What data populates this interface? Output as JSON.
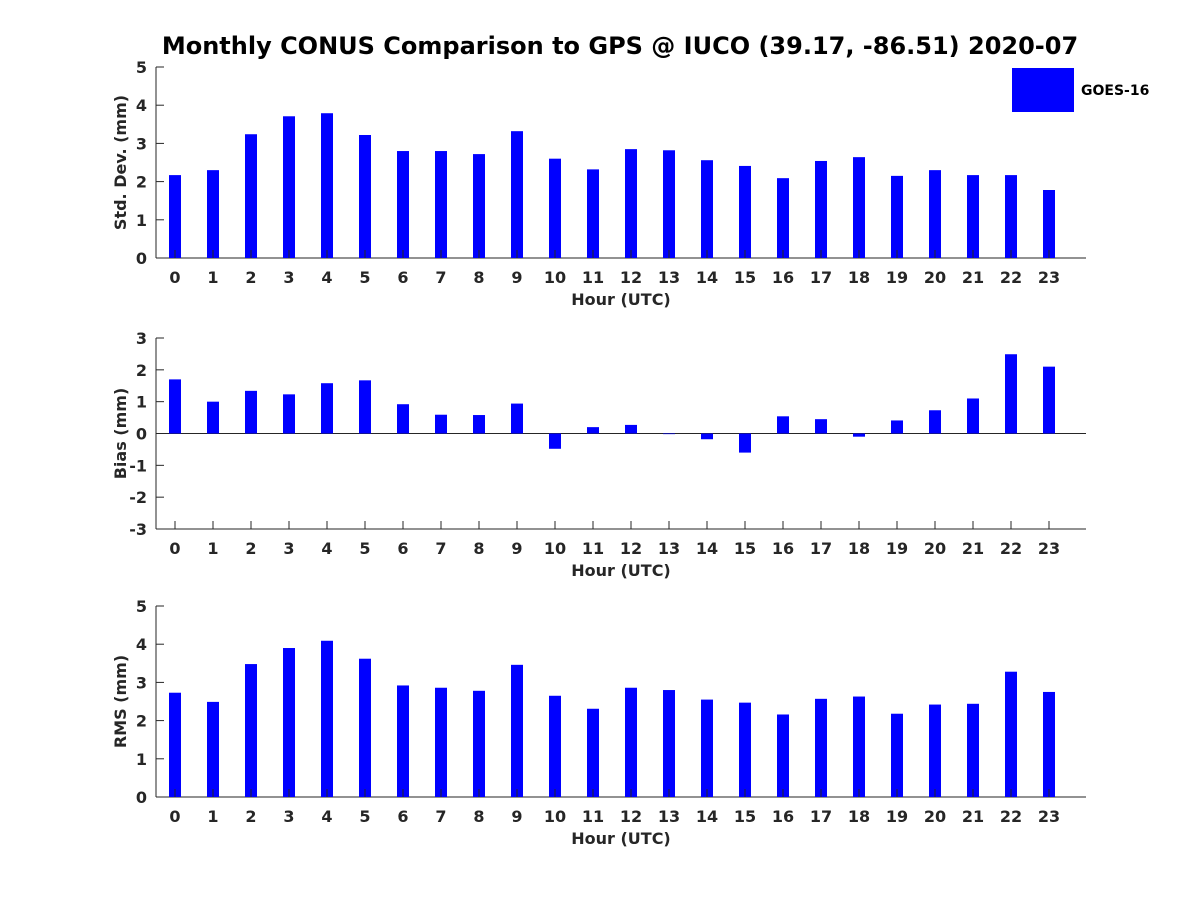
{
  "title": "Monthly CONUS Comparison to GPS @ IUCO (39.17, -86.51) 2020-07",
  "legend": {
    "label": "GOES-16",
    "color": "#0000ff"
  },
  "chart_data": [
    {
      "type": "bar",
      "ylabel": "Std. Dev. (mm)",
      "xlabel": "Hour (UTC)",
      "ylim": [
        0,
        5
      ],
      "yticks": [
        0,
        1,
        2,
        3,
        4,
        5
      ],
      "categories": [
        "0",
        "1",
        "2",
        "3",
        "4",
        "5",
        "6",
        "7",
        "8",
        "9",
        "10",
        "11",
        "12",
        "13",
        "14",
        "15",
        "16",
        "17",
        "18",
        "19",
        "20",
        "21",
        "22",
        "23"
      ],
      "series": [
        {
          "name": "GOES-16",
          "values": [
            2.17,
            2.3,
            3.24,
            3.71,
            3.79,
            3.22,
            2.8,
            2.8,
            2.72,
            3.32,
            2.6,
            2.32,
            2.85,
            2.82,
            2.56,
            2.41,
            2.09,
            2.54,
            2.64,
            2.15,
            2.3,
            2.17,
            2.17,
            1.78
          ]
        }
      ]
    },
    {
      "type": "bar",
      "ylabel": "Bias (mm)",
      "xlabel": "Hour (UTC)",
      "ylim": [
        -3,
        3
      ],
      "yticks": [
        -3,
        -2,
        -1,
        0,
        1,
        2,
        3
      ],
      "categories": [
        "0",
        "1",
        "2",
        "3",
        "4",
        "5",
        "6",
        "7",
        "8",
        "9",
        "10",
        "11",
        "12",
        "13",
        "14",
        "15",
        "16",
        "17",
        "18",
        "19",
        "20",
        "21",
        "22",
        "23"
      ],
      "series": [
        {
          "name": "GOES-16",
          "values": [
            1.7,
            1.0,
            1.34,
            1.23,
            1.58,
            1.67,
            0.92,
            0.59,
            0.58,
            0.94,
            -0.48,
            0.2,
            0.27,
            -0.02,
            -0.18,
            -0.6,
            0.54,
            0.45,
            -0.1,
            0.41,
            0.73,
            1.1,
            2.49,
            2.1
          ]
        }
      ]
    },
    {
      "type": "bar",
      "ylabel": "RMS (mm)",
      "xlabel": "Hour (UTC)",
      "ylim": [
        0,
        5
      ],
      "yticks": [
        0,
        1,
        2,
        3,
        4,
        5
      ],
      "categories": [
        "0",
        "1",
        "2",
        "3",
        "4",
        "5",
        "6",
        "7",
        "8",
        "9",
        "10",
        "11",
        "12",
        "13",
        "14",
        "15",
        "16",
        "17",
        "18",
        "19",
        "20",
        "21",
        "22",
        "23"
      ],
      "series": [
        {
          "name": "GOES-16",
          "values": [
            2.73,
            2.49,
            3.48,
            3.9,
            4.09,
            3.62,
            2.92,
            2.86,
            2.78,
            3.46,
            2.65,
            2.31,
            2.86,
            2.8,
            2.55,
            2.47,
            2.16,
            2.57,
            2.63,
            2.18,
            2.42,
            2.44,
            3.28,
            2.75
          ]
        }
      ]
    }
  ]
}
